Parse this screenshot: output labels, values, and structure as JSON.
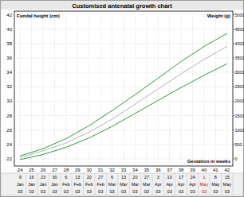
{
  "chart_data": {
    "type": "line",
    "title": "Customised antenatal growth chart",
    "y_label": "Fundal height (cm)",
    "y2_label": "Weight (g)",
    "x_label": "Gestation in weeks",
    "x": [
      24,
      26,
      28,
      30,
      32,
      34,
      36,
      38,
      40,
      42
    ],
    "series": [
      {
        "color": "#2e9a3a",
        "values": [
          22.4,
          23.4,
          24.8,
          26.6,
          28.7,
          30.9,
          33.2,
          35.5,
          37.6,
          39.4
        ]
      },
      {
        "color": "#b4b4b4",
        "values": [
          22.2,
          23.1,
          24.2,
          25.7,
          27.5,
          29.6,
          31.7,
          33.8,
          35.8,
          37.6
        ]
      },
      {
        "color": "#2e9a3a",
        "values": [
          21.9,
          22.6,
          23.6,
          24.9,
          26.5,
          28.3,
          30.1,
          31.9,
          33.6,
          35.2
        ]
      }
    ],
    "xlim": [
      23.5,
      42.5
    ],
    "xticks": [
      24,
      25,
      26,
      27,
      28,
      29,
      30,
      31,
      32,
      33,
      34,
      35,
      36,
      37,
      38,
      39,
      40,
      41,
      42
    ],
    "ylim": [
      21,
      42.5
    ],
    "yticks": [
      22,
      24,
      26,
      28,
      30,
      32,
      34,
      36,
      38,
      40,
      42
    ],
    "y2lim": [
      -250,
      5125
    ],
    "y2ticks": [
      0,
      500,
      1000,
      1500,
      2000,
      2500,
      3000,
      3500,
      4000,
      4500,
      5000
    ],
    "grid": true,
    "line_style": "solid",
    "dates": {
      "day": [
        "9",
        "16",
        "23",
        "30",
        "6",
        "13",
        "20",
        "27",
        "6",
        "13",
        "20",
        "27",
        "3",
        "10",
        "17",
        "24",
        "1",
        "8",
        "15"
      ],
      "month": [
        "Jan",
        "Jan",
        "Jan",
        "Jan",
        "Feb",
        "Feb",
        "Feb",
        "Feb",
        "Mar",
        "Mar",
        "Mar",
        "Mar",
        "Apr",
        "Apr",
        "Apr",
        "Apr",
        "May",
        "May",
        "May"
      ],
      "year": [
        "03",
        "03",
        "03",
        "03",
        "03",
        "03",
        "03",
        "03",
        "03",
        "03",
        "03",
        "03",
        "03",
        "03",
        "03",
        "03",
        "03",
        "03",
        "03"
      ],
      "colors": [
        "#000000",
        "#000000",
        "#000000",
        "#000000",
        "#000000",
        "#000000",
        "#000000",
        "#000000",
        "#000000",
        "#000000",
        "#000000",
        "#000000",
        "#000000",
        "#000000",
        "#000000",
        "#000000",
        "#e00000",
        "#000000",
        "#000000"
      ]
    }
  }
}
